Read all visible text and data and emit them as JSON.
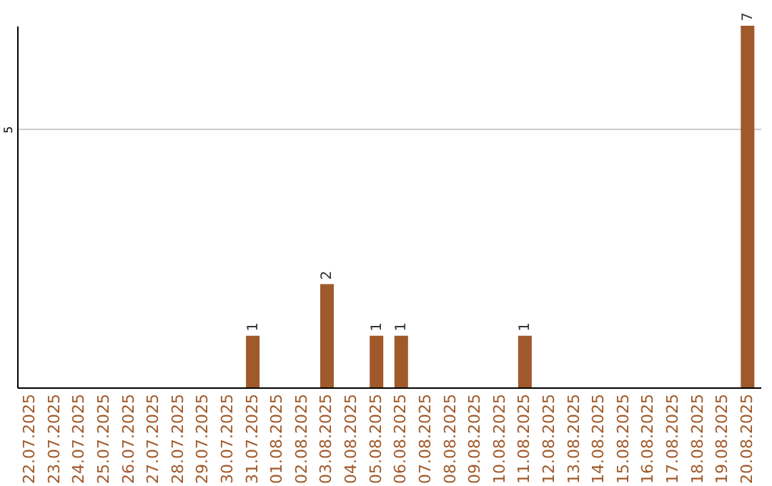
{
  "chart_data": {
    "type": "bar",
    "categories": [
      "22.07.2025",
      "23.07.2025",
      "24.07.2025",
      "25.07.2025",
      "26.07.2025",
      "27.07.2025",
      "28.07.2025",
      "29.07.2025",
      "30.07.2025",
      "31.07.2025",
      "01.08.2025",
      "02.08.2025",
      "03.08.2025",
      "04.08.2025",
      "05.08.2025",
      "06.08.2025",
      "07.08.2025",
      "08.08.2025",
      "09.08.2025",
      "10.08.2025",
      "11.08.2025",
      "12.08.2025",
      "13.08.2025",
      "14.08.2025",
      "15.08.2025",
      "16.08.2025",
      "17.08.2025",
      "18.08.2025",
      "19.08.2025",
      "20.08.2025"
    ],
    "values": [
      0,
      0,
      0,
      0,
      0,
      0,
      0,
      0,
      0,
      1,
      0,
      0,
      2,
      0,
      1,
      1,
      0,
      0,
      0,
      0,
      1,
      0,
      0,
      0,
      0,
      0,
      0,
      0,
      0,
      7
    ],
    "value_labels": [
      null,
      null,
      null,
      null,
      null,
      null,
      null,
      null,
      null,
      "1",
      null,
      null,
      "2",
      null,
      "1",
      "1",
      null,
      null,
      null,
      null,
      "1",
      null,
      null,
      null,
      null,
      null,
      null,
      null,
      null,
      "7"
    ],
    "color": "#a0592a",
    "ylim": [
      0,
      7
    ],
    "yticks": [
      5
    ],
    "grid": "y"
  }
}
